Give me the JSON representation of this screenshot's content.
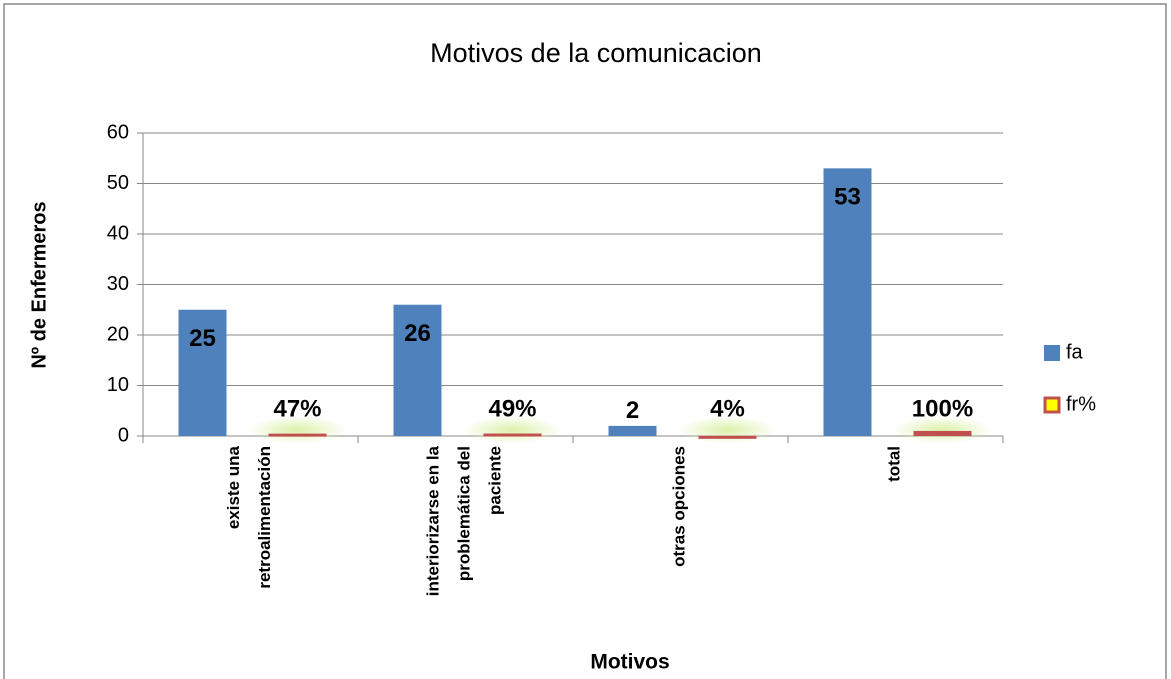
{
  "chart_data": {
    "type": "bar",
    "title": "Motivos de la comunicacion",
    "x_label": "Motivos",
    "y_label": "Nº de Enfermeros",
    "categories": [
      "existe una\nretroalimentación",
      "interiorizarse en la\nproblemática del\npaciente",
      "otras opciones",
      "total"
    ],
    "series": [
      {
        "name": "fa",
        "color": "#4f81bd",
        "values": [
          25,
          26,
          2,
          53
        ]
      },
      {
        "name": "fr%",
        "color": "#c0504d",
        "values": [
          0.47,
          0.49,
          0.04,
          1
        ],
        "value_labels": [
          "47%",
          "49%",
          "4%",
          "100%"
        ]
      }
    ],
    "ylim": [
      0,
      60
    ],
    "yticks": [
      0,
      10,
      20,
      30,
      40,
      50,
      60
    ],
    "grid": true,
    "legend": "right"
  }
}
